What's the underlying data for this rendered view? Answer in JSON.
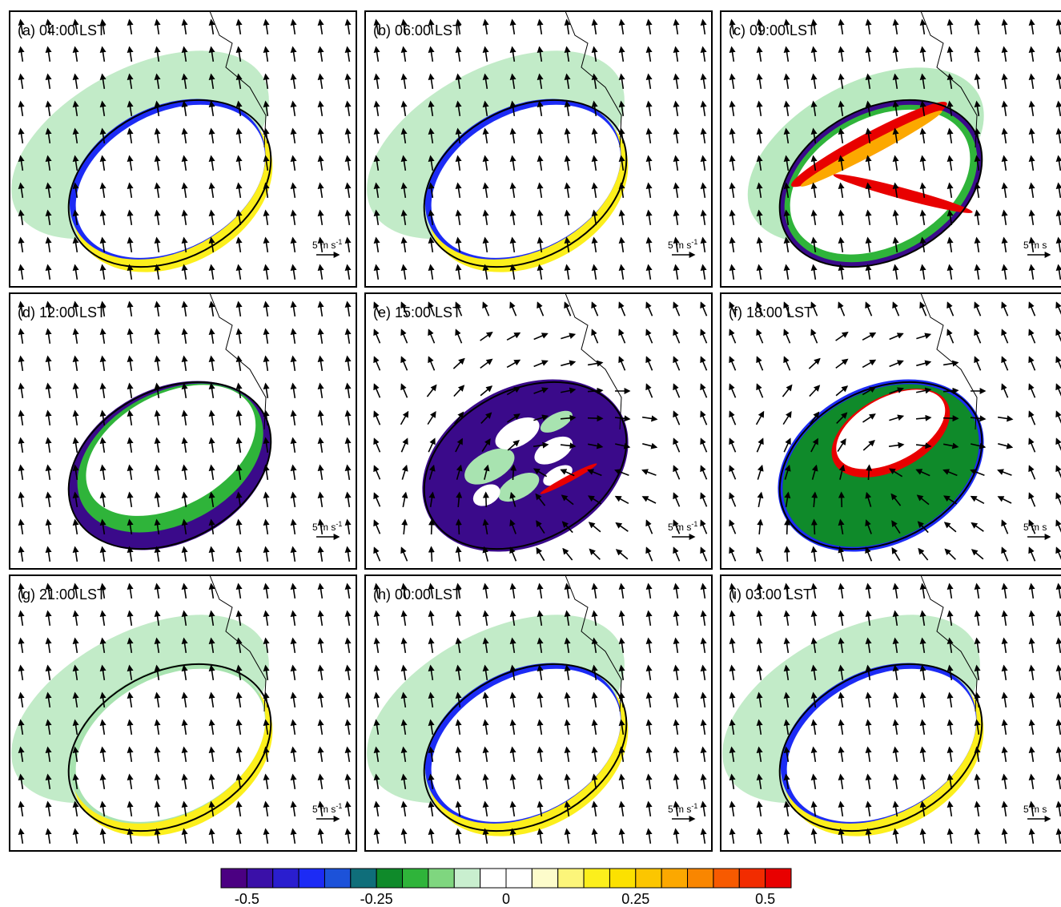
{
  "chart_data": {
    "type": "heatmap",
    "description_fields": [
      "vertical velocity contours",
      "wind vectors"
    ],
    "panels": [
      {
        "id": "a",
        "title": "(a) 04:00 LST",
        "scale_label": "5 m s",
        "scale_exp": "-1",
        "pattern": "night"
      },
      {
        "id": "b",
        "title": "(b) 06:00 LST",
        "scale_label": "5 m s",
        "scale_exp": "-1",
        "pattern": "night"
      },
      {
        "id": "c",
        "title": "(c) 09:00 LST",
        "scale_label": "5 m s",
        "scale_exp": "",
        "pattern": "morning"
      },
      {
        "id": "d",
        "title": "(d) 12:00 LST",
        "scale_label": "5 m s",
        "scale_exp": "-1",
        "pattern": "noon"
      },
      {
        "id": "e",
        "title": "(e) 15:00 LST",
        "scale_label": "5 m s",
        "scale_exp": "-1",
        "pattern": "afternoon"
      },
      {
        "id": "f",
        "title": "(f) 18:00 LST",
        "scale_label": "5 m s",
        "scale_exp": "",
        "pattern": "evening"
      },
      {
        "id": "g",
        "title": "(g) 21:00 LST",
        "scale_label": "5 m s",
        "scale_exp": "-1",
        "pattern": "late"
      },
      {
        "id": "h",
        "title": "(h) 00:00 LST",
        "scale_label": "5 m s",
        "scale_exp": "-1",
        "pattern": "night"
      },
      {
        "id": "i",
        "title": "(i) 03:00 LST",
        "scale_label": "5 m s",
        "scale_exp": "",
        "pattern": "night"
      }
    ],
    "colorbar": {
      "colors": [
        "#4b0082",
        "#3a10a8",
        "#2a1ecf",
        "#1c2bf5",
        "#1c52d9",
        "#0f6e7a",
        "#0f8a2a",
        "#2fb43a",
        "#7fd67f",
        "#c9efcf",
        "#ffffff",
        "#ffffff",
        "#fdfccb",
        "#fcf57a",
        "#fcef1c",
        "#fce100",
        "#fcc600",
        "#fca800",
        "#f98600",
        "#f75a00",
        "#f22c00",
        "#e80000"
      ],
      "ticks": [
        "-0.5",
        "-0.25",
        "0",
        "0.25",
        "0.5"
      ],
      "tick_values": [
        -0.5,
        -0.25,
        0,
        0.25,
        0.5
      ],
      "range": [
        -0.55,
        0.55
      ]
    }
  }
}
